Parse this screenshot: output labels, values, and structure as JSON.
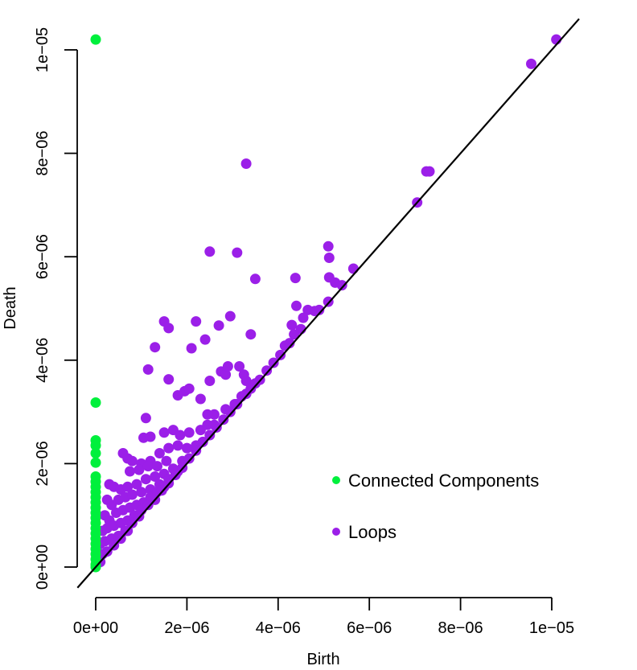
{
  "chart_data": {
    "type": "scatter",
    "title": "",
    "xlabel": "Birth",
    "ylabel": "Death",
    "xlim": [
      0,
      1e-05
    ],
    "ylim": [
      0,
      1e-05
    ],
    "grid": false,
    "x_ticks": [
      0,
      2e-06,
      4e-06,
      6e-06,
      8e-06,
      1e-05
    ],
    "x_tick_labels": [
      "0e+00",
      "2e−06",
      "4e−06",
      "6e−06",
      "8e−06",
      "1e−05"
    ],
    "y_ticks": [
      0,
      2e-06,
      4e-06,
      6e-06,
      8e-06,
      1e-05
    ],
    "y_tick_labels": [
      "0e+00",
      "2e−06",
      "4e−06",
      "6e−06",
      "8e−06",
      "1e−05"
    ],
    "reference_line": {
      "type": "diagonal",
      "slope": 1,
      "intercept": 0,
      "color": "#000000"
    },
    "legend": {
      "placement": "bottom-right"
    },
    "series": [
      {
        "name": "Connected Components",
        "color": "#00f03c",
        "points": [
          [
            0,
            1.02e-05
          ],
          [
            0,
            3.18e-06
          ],
          [
            0,
            2.45e-06
          ],
          [
            0,
            2.35e-06
          ],
          [
            0,
            2.2e-06
          ],
          [
            0,
            2.02e-06
          ],
          [
            0,
            1.75e-06
          ],
          [
            0,
            1.65e-06
          ],
          [
            0,
            1.55e-06
          ],
          [
            0,
            1.45e-06
          ],
          [
            0,
            1.35e-06
          ],
          [
            0,
            1.25e-06
          ],
          [
            0,
            1.15e-06
          ],
          [
            0,
            1.05e-06
          ],
          [
            0,
            9.5e-07
          ],
          [
            0,
            8.5e-07
          ],
          [
            0,
            7.5e-07
          ],
          [
            0,
            6.5e-07
          ],
          [
            0,
            5.5e-07
          ],
          [
            0,
            4.5e-07
          ],
          [
            0,
            3.5e-07
          ],
          [
            0,
            2.5e-07
          ],
          [
            0,
            1.5e-07
          ],
          [
            0,
            5e-08
          ],
          [
            0,
            0.0
          ]
        ]
      },
      {
        "name": "Loops",
        "color": "#9b1fe8",
        "points": [
          [
            1.01e-05,
            1.02e-05
          ],
          [
            9.55e-06,
            9.73e-06
          ],
          [
            7.25e-06,
            7.65e-06
          ],
          [
            7.32e-06,
            7.65e-06
          ],
          [
            7.05e-06,
            7.05e-06
          ],
          [
            3.3e-06,
            7.8e-06
          ],
          [
            2.5e-06,
            6.1e-06
          ],
          [
            3.1e-06,
            6.08e-06
          ],
          [
            5.1e-06,
            6.2e-06
          ],
          [
            5.12e-06,
            5.98e-06
          ],
          [
            3.5e-06,
            5.57e-06
          ],
          [
            5.65e-06,
            5.77e-06
          ],
          [
            5.12e-06,
            5.6e-06
          ],
          [
            5.25e-06,
            5.5e-06
          ],
          [
            5.4e-06,
            5.45e-06
          ],
          [
            4.38e-06,
            5.59e-06
          ],
          [
            4.4e-06,
            5.05e-06
          ],
          [
            5.1e-06,
            5.13e-06
          ],
          [
            4.65e-06,
            4.97e-06
          ],
          [
            4.8e-06,
            4.95e-06
          ],
          [
            4.9e-06,
            4.97e-06
          ],
          [
            4.55e-06,
            4.82e-06
          ],
          [
            4.3e-06,
            4.68e-06
          ],
          [
            4.5e-06,
            4.6e-06
          ],
          [
            4.35e-06,
            4.5e-06
          ],
          [
            1.5e-06,
            4.75e-06
          ],
          [
            2.2e-06,
            4.75e-06
          ],
          [
            1.6e-06,
            4.62e-06
          ],
          [
            2.7e-06,
            4.67e-06
          ],
          [
            2.95e-06,
            4.85e-06
          ],
          [
            2.1e-06,
            4.23e-06
          ],
          [
            1.3e-06,
            4.25e-06
          ],
          [
            2.4e-06,
            4.4e-06
          ],
          [
            3.4e-06,
            4.5e-06
          ],
          [
            1.6e-06,
            3.63e-06
          ],
          [
            1.15e-06,
            3.82e-06
          ],
          [
            3.15e-06,
            3.88e-06
          ],
          [
            2.75e-06,
            3.78e-06
          ],
          [
            2.85e-06,
            3.72e-06
          ],
          [
            2.9e-06,
            3.88e-06
          ],
          [
            3.25e-06,
            3.72e-06
          ],
          [
            3.3e-06,
            3.6e-06
          ],
          [
            2.5e-06,
            3.6e-06
          ],
          [
            3.6e-06,
            3.62e-06
          ],
          [
            3.75e-06,
            3.8e-06
          ],
          [
            3.9e-06,
            3.95e-06
          ],
          [
            4.05e-06,
            4.1e-06
          ],
          [
            4.15e-06,
            4.28e-06
          ],
          [
            4.25e-06,
            4.33e-06
          ],
          [
            3.5e-06,
            3.55e-06
          ],
          [
            1.95e-06,
            3.4e-06
          ],
          [
            2.05e-06,
            3.45e-06
          ],
          [
            1.8e-06,
            3.32e-06
          ],
          [
            2.3e-06,
            3.25e-06
          ],
          [
            2.85e-06,
            3.05e-06
          ],
          [
            3.05e-06,
            3.15e-06
          ],
          [
            3.2e-06,
            3.3e-06
          ],
          [
            3.4e-06,
            3.45e-06
          ],
          [
            2.6e-06,
            2.95e-06
          ],
          [
            2.45e-06,
            2.95e-06
          ],
          [
            1.1e-06,
            2.88e-06
          ],
          [
            1.05e-06,
            2.5e-06
          ],
          [
            1.2e-06,
            2.52e-06
          ],
          [
            1.5e-06,
            2.6e-06
          ],
          [
            1.7e-06,
            2.65e-06
          ],
          [
            1.85e-06,
            2.55e-06
          ],
          [
            2.05e-06,
            2.6e-06
          ],
          [
            2.3e-06,
            2.65e-06
          ],
          [
            2.45e-06,
            2.75e-06
          ],
          [
            2.6e-06,
            2.75e-06
          ],
          [
            6e-07,
            2.2e-06
          ],
          [
            7e-07,
            2.1e-06
          ],
          [
            8e-07,
            2.05e-06
          ],
          [
            1e-06,
            2e-06
          ],
          [
            1.2e-06,
            2.05e-06
          ],
          [
            1.4e-06,
            2.2e-06
          ],
          [
            1.6e-06,
            2.3e-06
          ],
          [
            1.8e-06,
            2.35e-06
          ],
          [
            2e-06,
            2.3e-06
          ],
          [
            2.2e-06,
            2.35e-06
          ],
          [
            7.5e-07,
            1.85e-06
          ],
          [
            9.5e-07,
            1.88e-06
          ],
          [
            1.15e-06,
            1.95e-06
          ],
          [
            1.35e-06,
            1.95e-06
          ],
          [
            1.55e-06,
            2.05e-06
          ],
          [
            3e-07,
            1.6e-06
          ],
          [
            4e-07,
            1.55e-06
          ],
          [
            5.5e-07,
            1.5e-06
          ],
          [
            7e-07,
            1.55e-06
          ],
          [
            9e-07,
            1.6e-06
          ],
          [
            1.1e-06,
            1.7e-06
          ],
          [
            1.3e-06,
            1.75e-06
          ],
          [
            1.5e-06,
            1.8e-06
          ],
          [
            1.7e-06,
            1.9e-06
          ],
          [
            1.9e-06,
            2.05e-06
          ],
          [
            2.5e-07,
            1.3e-06
          ],
          [
            3.5e-07,
            1.2e-06
          ],
          [
            5e-07,
            1.3e-06
          ],
          [
            6.5e-07,
            1.35e-06
          ],
          [
            8e-07,
            1.4e-06
          ],
          [
            1e-06,
            1.45e-06
          ],
          [
            1.2e-06,
            1.5e-06
          ],
          [
            1.4e-06,
            1.6e-06
          ],
          [
            1.6e-06,
            1.7e-06
          ],
          [
            1.8e-06,
            1.85e-06
          ],
          [
            2e-07,
            1e-06
          ],
          [
            3e-07,
            9e-07
          ],
          [
            4.5e-07,
            1.05e-06
          ],
          [
            6e-07,
            1.1e-06
          ],
          [
            7.5e-07,
            1.15e-06
          ],
          [
            9e-07,
            1.2e-06
          ],
          [
            1.05e-06,
            1.25e-06
          ],
          [
            1.2e-06,
            1.35e-06
          ],
          [
            1.35e-06,
            1.45e-06
          ],
          [
            1.5e-06,
            1.55e-06
          ],
          [
            1.5e-07,
            7e-07
          ],
          [
            2.5e-07,
            7.5e-07
          ],
          [
            4e-07,
            8e-07
          ],
          [
            5.5e-07,
            8.5e-07
          ],
          [
            7e-07,
            9e-07
          ],
          [
            8.5e-07,
            1e-06
          ],
          [
            1e-06,
            1.1e-06
          ],
          [
            1.15e-06,
            1.2e-06
          ],
          [
            1e-07,
            4.5e-07
          ],
          [
            2e-07,
            5e-07
          ],
          [
            3.5e-07,
            5.5e-07
          ],
          [
            5e-07,
            6e-07
          ],
          [
            6.5e-07,
            7e-07
          ],
          [
            8e-07,
            8.5e-07
          ],
          [
            9.5e-07,
            9.8e-07
          ],
          [
            5e-08,
            2e-07
          ],
          [
            1.5e-07,
            2.5e-07
          ],
          [
            2.5e-07,
            3e-07
          ],
          [
            4e-07,
            4.2e-07
          ],
          [
            5.5e-07,
            5.5e-07
          ],
          [
            7e-07,
            7e-07
          ],
          [
            2e-08,
            5e-08
          ],
          [
            1e-07,
            1e-07
          ],
          [
            1.3e-06,
            1.3e-06
          ],
          [
            1.45e-06,
            1.48e-06
          ],
          [
            1.6e-06,
            1.62e-06
          ],
          [
            1.75e-06,
            1.78e-06
          ],
          [
            1.9e-06,
            1.92e-06
          ],
          [
            2.05e-06,
            2.1e-06
          ],
          [
            2.2e-06,
            2.25e-06
          ],
          [
            2.35e-06,
            2.42e-06
          ],
          [
            2.5e-06,
            2.55e-06
          ],
          [
            2.65e-06,
            2.7e-06
          ],
          [
            2.8e-06,
            2.85e-06
          ],
          [
            2.95e-06,
            3e-06
          ],
          [
            3.1e-06,
            3.15e-06
          ],
          [
            3.3e-06,
            3.35e-06
          ]
        ]
      }
    ]
  }
}
